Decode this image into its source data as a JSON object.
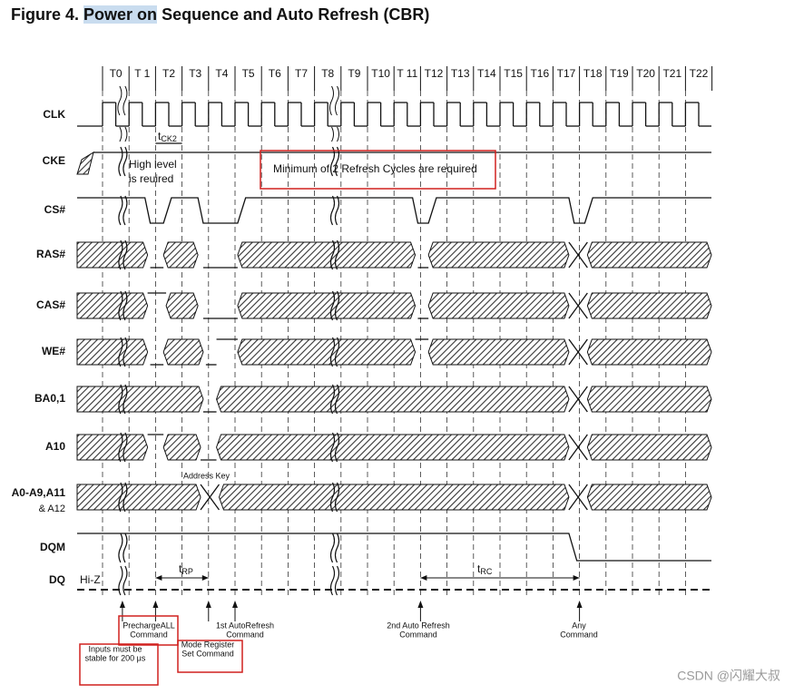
{
  "title": {
    "prefix": "Figure 4.",
    "highlight": "Power on",
    "rest": "Sequence and Auto Refresh (CBR)"
  },
  "clocks": [
    "T0",
    "T 1",
    "T2",
    "T3",
    "T4",
    "T5",
    "T6",
    "T7",
    "T8",
    "T9",
    "T10",
    "T 11",
    "T12",
    "T13",
    "T14",
    "T15",
    "T16",
    "T17",
    "T18",
    "T19",
    "T20",
    "T21",
    "T22"
  ],
  "signals": [
    "CLK",
    "CKE",
    "CS#",
    "RAS#",
    "CAS#",
    "WE#",
    "BA0,1",
    "A10",
    "A0-A9,A11",
    "DQM",
    "DQ"
  ],
  "signal_note": "& A12",
  "annotations": {
    "tck": {
      "t": "t",
      "sub": "CK2"
    },
    "high_level": [
      "High level",
      "is reuired"
    ],
    "refresh_note": "Minimum of 2 Refresh Cycles are required",
    "address_key": "Address Key",
    "hi_z": "Hi-Z",
    "trp": {
      "t": "t",
      "sub": "RP"
    },
    "trc": {
      "t": "t",
      "sub": "RC"
    }
  },
  "commands": [
    {
      "lines": [
        "PrechargeALL",
        "Command"
      ]
    },
    {
      "lines": [
        "1st AutoRefresh",
        "Command"
      ]
    },
    {
      "lines": [
        "2nd Auto Refresh",
        "Command"
      ]
    },
    {
      "lines": [
        "Any",
        "Command"
      ]
    },
    {
      "lines": [
        "Mode Register",
        "Set Command"
      ]
    },
    {
      "lines": [
        "Inputs must be",
        "stable for 200 μs"
      ]
    }
  ],
  "watermark": "CSDN @闪耀大叔"
}
